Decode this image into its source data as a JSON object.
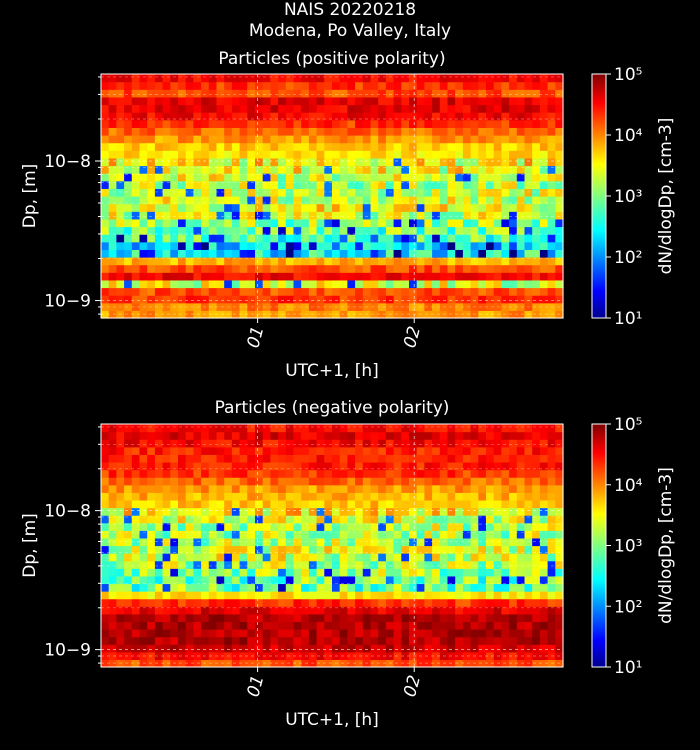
{
  "suptitle": {
    "line1": "NAIS 20220218",
    "line2": "Modena, Po Valley, Italy"
  },
  "colormap": "jet",
  "chart_data": [
    {
      "type": "heatmap",
      "title": "Particles (positive polarity)",
      "xlabel": "UTC+1, [h]",
      "ylabel": "Dp, [m]",
      "x_ticks": [
        "01",
        "02"
      ],
      "x_tick_hours": [
        1,
        2
      ],
      "x_range_hours": [
        0.0,
        2.95
      ],
      "y_scale": "log",
      "y_ticks": [
        "10−8",
        "10−9"
      ],
      "y_tick_values": [
        1e-08,
        1e-09
      ],
      "y_range": [
        7.5e-10,
        4.2e-08
      ],
      "colorbar": {
        "label": "dN/dlogDp, [cm-3]",
        "scale": "log",
        "range": [
          10,
          100000
        ],
        "ticks": [
          "10⁵",
          "10⁴",
          "10³",
          "10²",
          "10¹"
        ]
      },
      "profile_log10_by_size_bin": [
        3.9,
        4.0,
        4.3,
        4.2,
        3.3,
        4.5,
        4.2,
        3.8,
        2.5,
        2.3,
        2.8,
        2.9,
        3.1,
        3.3,
        3.4,
        3.3,
        3.3,
        3.2,
        3.3,
        3.4,
        3.5,
        3.6,
        3.7,
        3.9,
        4.1,
        4.3,
        4.5,
        4.6,
        4.6,
        4.2,
        4.3,
        4.5
      ]
    },
    {
      "type": "heatmap",
      "title": "Particles (negative polarity)",
      "xlabel": "UTC+1, [h]",
      "ylabel": "Dp, [m]",
      "x_ticks": [
        "01",
        "02"
      ],
      "x_tick_hours": [
        1,
        2
      ],
      "x_range_hours": [
        0.0,
        2.95
      ],
      "y_scale": "log",
      "y_ticks": [
        "10−8",
        "10−9"
      ],
      "y_tick_values": [
        1e-08,
        1e-09
      ],
      "y_range": [
        7.5e-10,
        4.2e-08
      ],
      "colorbar": {
        "label": "dN/dlogDp, [cm-3]",
        "scale": "log",
        "range": [
          10,
          100000
        ],
        "ticks": [
          "10⁵",
          "10⁴",
          "10³",
          "10²",
          "10¹"
        ]
      },
      "profile_log10_by_size_bin": [
        4.2,
        4.5,
        4.7,
        4.8,
        4.8,
        4.8,
        4.8,
        4.6,
        4.3,
        3.6,
        2.9,
        2.9,
        3.1,
        3.2,
        3.3,
        3.3,
        3.2,
        3.2,
        3.2,
        3.3,
        3.5,
        3.7,
        3.8,
        3.9,
        4.1,
        4.3,
        4.4,
        4.4,
        4.4,
        4.5,
        4.6,
        4.5
      ]
    }
  ]
}
